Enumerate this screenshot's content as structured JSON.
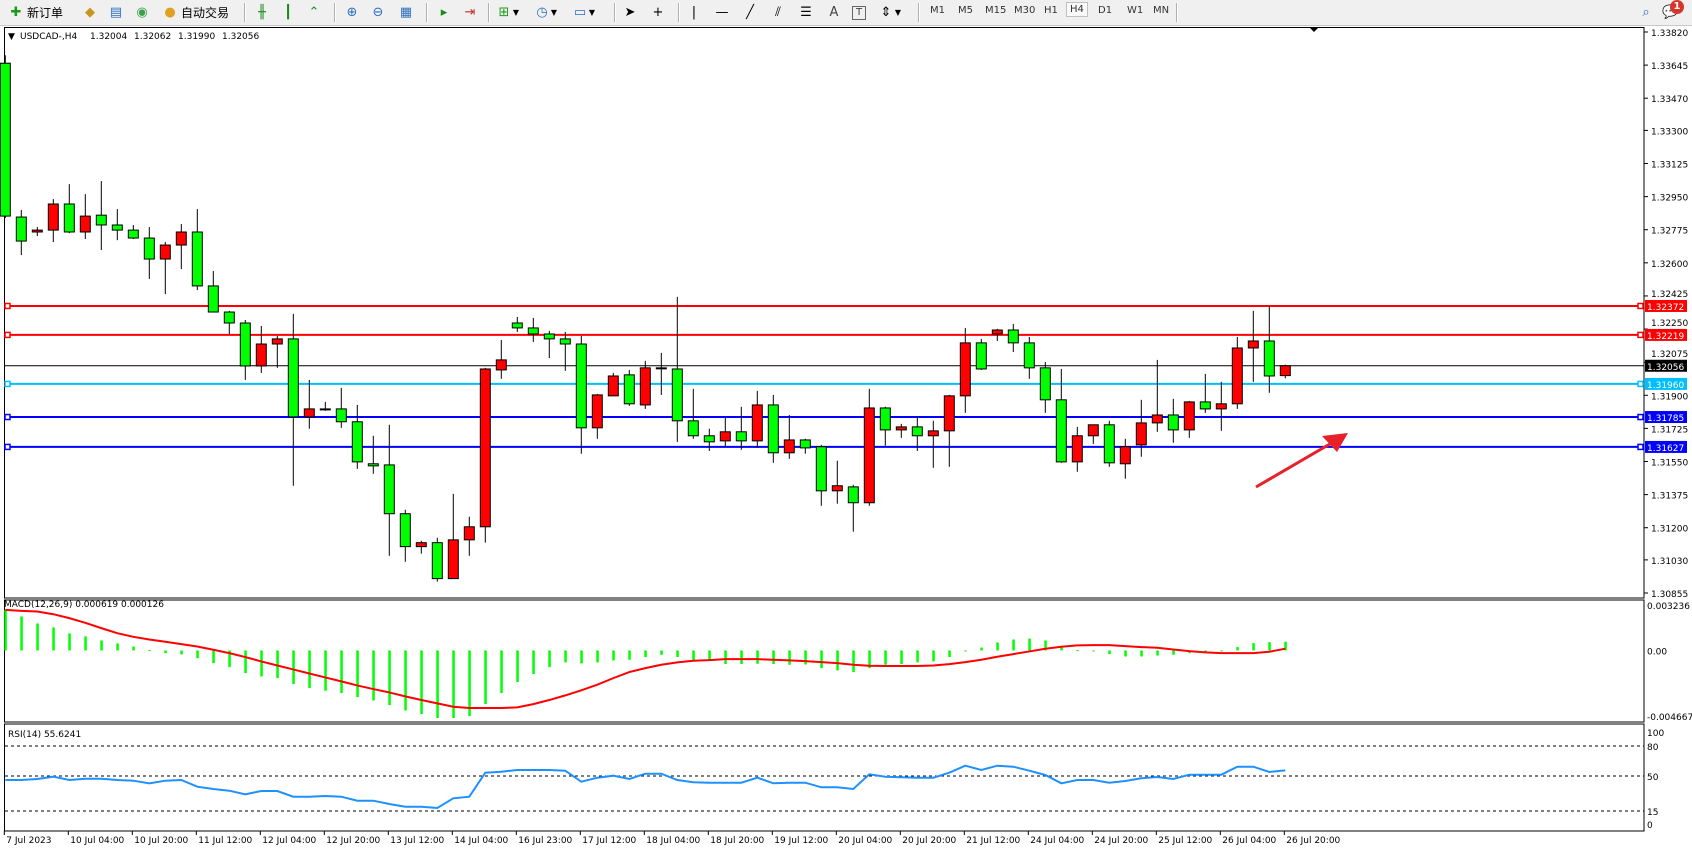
{
  "toolbar": {
    "new_order_label": "新订单",
    "auto_trading_label": "自动交易",
    "timeframes": [
      "M1",
      "M5",
      "M15",
      "M30",
      "H1",
      "H4",
      "D1",
      "W1",
      "MN"
    ],
    "selected_timeframe": "H4",
    "notification_count": "1"
  },
  "chart_info": {
    "symbol": "USDCAD-,H4",
    "open": "1.32004",
    "high": "1.32062",
    "low": "1.31990",
    "close": "1.32056"
  },
  "colors": {
    "bull_candle": "#ff0000",
    "bear_candle": "#00ff00",
    "resistance": "#ff0000",
    "pivot": "#00bfff",
    "support": "#0000ff",
    "macd_hist": "#00ff00",
    "macd_signal": "#ff0000",
    "rsi": "#1e90ff",
    "arrow": "#e8202a"
  },
  "chart_data": [
    {
      "type": "candlestick",
      "title": "USDCAD-,H4",
      "ylim": [
        1.30855,
        1.3382
      ],
      "y_ticks": [
        "1.33820",
        "1.33645",
        "1.33470",
        "1.33300",
        "1.33125",
        "1.32950",
        "1.32775",
        "1.32600",
        "1.32425",
        "1.32250",
        "1.32075",
        "1.31900",
        "1.31725",
        "1.31550",
        "1.31375",
        "1.31200",
        "1.31030",
        "1.30855"
      ],
      "x_tick_labels": [
        "7 Jul 2023",
        "10 Jul 04:00",
        "10 Jul 20:00",
        "11 Jul 12:00",
        "12 Jul 04:00",
        "12 Jul 20:00",
        "13 Jul 12:00",
        "14 Jul 04:00",
        "16 Jul 23:00",
        "17 Jul 12:00",
        "18 Jul 04:00",
        "18 Jul 20:00",
        "19 Jul 12:00",
        "20 Jul 04:00",
        "20 Jul 20:00",
        "21 Jul 12:00",
        "24 Jul 04:00",
        "24 Jul 20:00",
        "25 Jul 12:00",
        "26 Jul 04:00",
        "26 Jul 20:00"
      ],
      "x_tick_every_n_bars": 4,
      "ohlc": [
        [
          1.33655,
          1.33697,
          1.32837,
          1.32847
        ],
        [
          1.32842,
          1.32879,
          1.32641,
          1.32715
        ],
        [
          1.32763,
          1.32789,
          1.32742,
          1.32773
        ],
        [
          1.32773,
          1.32937,
          1.3271,
          1.32911
        ],
        [
          1.32911,
          1.33016,
          1.32757,
          1.32763
        ],
        [
          1.32763,
          1.32963,
          1.32726,
          1.32847
        ],
        [
          1.32852,
          1.33032,
          1.32668,
          1.328
        ],
        [
          1.328,
          1.32884,
          1.3272,
          1.32773
        ],
        [
          1.32773,
          1.328,
          1.32726,
          1.32731
        ],
        [
          1.32731,
          1.32789,
          1.32515,
          1.3262
        ],
        [
          1.3262,
          1.3271,
          1.32435,
          1.32694
        ],
        [
          1.32694,
          1.32805,
          1.32567,
          1.32763
        ],
        [
          1.32763,
          1.32884,
          1.32456,
          1.32478
        ],
        [
          1.32478,
          1.32557,
          1.3234,
          1.3234
        ],
        [
          1.3234,
          1.32346,
          1.32224,
          1.32282
        ],
        [
          1.32282,
          1.32298,
          1.31981,
          1.32055
        ],
        [
          1.32055,
          1.32266,
          1.32018,
          1.32171
        ],
        [
          1.32171,
          1.32214,
          1.32045,
          1.32198
        ],
        [
          1.32198,
          1.3233,
          1.31422,
          1.31786
        ],
        [
          1.31786,
          1.31981,
          1.31723,
          1.31828
        ],
        [
          1.31828,
          1.31865,
          1.31818,
          1.31828
        ],
        [
          1.31828,
          1.31939,
          1.31728,
          1.3176
        ],
        [
          1.3176,
          1.31849,
          1.31511,
          1.31548
        ],
        [
          1.31538,
          1.31686,
          1.31485,
          1.31527
        ],
        [
          1.31532,
          1.31744,
          1.31052,
          1.31274
        ],
        [
          1.31274,
          1.31295,
          1.3102,
          1.311
        ],
        [
          1.311,
          1.31131,
          1.31063,
          1.31121
        ],
        [
          1.31121,
          1.31147,
          1.30915,
          1.30931
        ],
        [
          1.30931,
          1.31379,
          1.30931,
          1.31136
        ],
        [
          1.31136,
          1.31258,
          1.31052,
          1.31205
        ],
        [
          1.31205,
          1.32045,
          1.31121,
          1.32039
        ],
        [
          1.32034,
          1.32192,
          1.31987,
          1.32087
        ],
        [
          1.32282,
          1.32314,
          1.32235,
          1.32256
        ],
        [
          1.32256,
          1.32309,
          1.32182,
          1.32224
        ],
        [
          1.32224,
          1.3224,
          1.32097,
          1.32198
        ],
        [
          1.32198,
          1.32235,
          1.32029,
          1.32171
        ],
        [
          1.32171,
          1.32214,
          1.31591,
          1.31728
        ],
        [
          1.31728,
          1.31907,
          1.3167,
          1.31902
        ],
        [
          1.31897,
          1.32018,
          1.31897,
          1.32002
        ],
        [
          1.32008,
          1.32034,
          1.31844,
          1.31855
        ],
        [
          1.31849,
          1.32082,
          1.31828,
          1.32045
        ],
        [
          1.32045,
          1.32124,
          1.31902,
          1.32045
        ],
        [
          1.32039,
          1.3242,
          1.31654,
          1.31765
        ],
        [
          1.31765,
          1.31934,
          1.3167,
          1.31686
        ],
        [
          1.31686,
          1.31723,
          1.31606,
          1.31654
        ],
        [
          1.31659,
          1.31781,
          1.31628,
          1.31707
        ],
        [
          1.31707,
          1.31839,
          1.31612,
          1.31659
        ],
        [
          1.31659,
          1.31923,
          1.31622,
          1.31849
        ],
        [
          1.31849,
          1.31902,
          1.31543,
          1.31596
        ],
        [
          1.31596,
          1.31796,
          1.31564,
          1.31664
        ],
        [
          1.31664,
          1.3167,
          1.31591,
          1.31622
        ],
        [
          1.31628,
          1.31638,
          1.31316,
          1.31395
        ],
        [
          1.31395,
          1.31554,
          1.31327,
          1.31422
        ],
        [
          1.31416,
          1.31427,
          1.31179,
          1.31332
        ],
        [
          1.31332,
          1.31934,
          1.31316,
          1.31833
        ],
        [
          1.31833,
          1.31839,
          1.31633,
          1.31717
        ],
        [
          1.31717,
          1.31749,
          1.31675,
          1.31733
        ],
        [
          1.31733,
          1.31786,
          1.31606,
          1.31686
        ],
        [
          1.31686,
          1.31765,
          1.31517,
          1.31712
        ],
        [
          1.31712,
          1.31902,
          1.31522,
          1.31897
        ],
        [
          1.31897,
          1.32256,
          1.31807,
          1.32177
        ],
        [
          1.32177,
          1.32198,
          1.32034,
          1.32039
        ],
        [
          1.32224,
          1.32251,
          1.32187,
          1.32245
        ],
        [
          1.32245,
          1.32277,
          1.32129,
          1.32177
        ],
        [
          1.32177,
          1.32208,
          1.31987,
          1.32045
        ],
        [
          1.32045,
          1.32076,
          1.31807,
          1.31876
        ],
        [
          1.31876,
          1.32039,
          1.31543,
          1.31548
        ],
        [
          1.31548,
          1.31733,
          1.31496,
          1.31686
        ],
        [
          1.31686,
          1.31744,
          1.31643,
          1.31744
        ],
        [
          1.31744,
          1.31765,
          1.31522,
          1.31543
        ],
        [
          1.31538,
          1.3167,
          1.31459,
          1.31628
        ],
        [
          1.31638,
          1.31876,
          1.31575,
          1.31754
        ],
        [
          1.31754,
          1.32087,
          1.31707,
          1.31796
        ],
        [
          1.31796,
          1.31881,
          1.31649,
          1.31717
        ],
        [
          1.31717,
          1.3187,
          1.31675,
          1.31865
        ],
        [
          1.31865,
          1.32013,
          1.31807,
          1.31828
        ],
        [
          1.31828,
          1.31971,
          1.31712,
          1.31855
        ],
        [
          1.31855,
          1.32208,
          1.31828,
          1.3215
        ],
        [
          1.3215,
          1.32346,
          1.31971,
          1.32187
        ],
        [
          1.32187,
          1.32372,
          1.31913,
          1.32002
        ],
        [
          1.32004,
          1.32062,
          1.3199,
          1.32056
        ]
      ],
      "horizontal_lines": [
        {
          "price": 1.32372,
          "label": "1.32372",
          "kind": "resistance"
        },
        {
          "price": 1.32219,
          "label": "1.32219",
          "kind": "resistance"
        },
        {
          "price": 1.32056,
          "label": "1.32056",
          "kind": "bid"
        },
        {
          "price": 1.3196,
          "label": "1.31960",
          "kind": "pivot"
        },
        {
          "price": 1.31785,
          "label": "1.31785",
          "kind": "support"
        },
        {
          "price": 1.31627,
          "label": "1.31627",
          "kind": "support"
        }
      ]
    },
    {
      "type": "bar+line",
      "title": "MACD(12,26,9) 0.000619 0.000126",
      "ylim": [
        -0.004667,
        0.003236
      ],
      "y_ticks": [
        "0.003236",
        "0.00",
        "-0.004667"
      ],
      "histogram": [
        0.00289,
        0.00242,
        0.00192,
        0.00164,
        0.00121,
        0.001,
        0.00071,
        0.0005,
        0.00028,
        2e-05,
        -0.00019,
        -0.00028,
        -0.00055,
        -0.0009,
        -0.00119,
        -0.00161,
        -0.00185,
        -0.00197,
        -0.00239,
        -0.00268,
        -0.00287,
        -0.00303,
        -0.00332,
        -0.00356,
        -0.00389,
        -0.00427,
        -0.00453,
        -0.00481,
        -0.00481,
        -0.00467,
        -0.00382,
        -0.00303,
        -0.00225,
        -0.00168,
        -0.00119,
        -0.00085,
        -0.00092,
        -0.00085,
        -0.00071,
        -0.00066,
        -0.00047,
        -0.00031,
        -0.00047,
        -0.00071,
        -0.00073,
        -0.00097,
        -0.00097,
        -0.00095,
        -0.00097,
        -0.00102,
        -0.001,
        -0.00126,
        -0.00142,
        -0.00154,
        -0.00126,
        -0.00102,
        -0.00097,
        -0.00085,
        -0.00078,
        -0.00047,
        -2e-05,
        0.00021,
        0.00057,
        0.00078,
        0.00085,
        0.00071,
        0.00028,
        2e-05,
        -7e-05,
        -0.00026,
        -0.00043,
        -0.00043,
        -0.00036,
        -0.00031,
        -0.00019,
        -0.00012,
        -7e-05,
        0.00024,
        0.00052,
        0.00059,
        0.000619
      ],
      "signal": [
        0.00289,
        0.00282,
        0.00277,
        0.00258,
        0.0023,
        0.00197,
        0.00159,
        0.00123,
        0.00097,
        0.00078,
        0.00062,
        0.00045,
        0.00028,
        5e-05,
        -0.00019,
        -0.00047,
        -0.00078,
        -0.00107,
        -0.00135,
        -0.00164,
        -0.00192,
        -0.0022,
        -0.00249,
        -0.00275,
        -0.00299,
        -0.00327,
        -0.00353,
        -0.00377,
        -0.00401,
        -0.0041,
        -0.0041,
        -0.0041,
        -0.00405,
        -0.00382,
        -0.00353,
        -0.0032,
        -0.00284,
        -0.00244,
        -0.00197,
        -0.00154,
        -0.00126,
        -0.00102,
        -0.00085,
        -0.00073,
        -0.00069,
        -0.00062,
        -0.00062,
        -0.00062,
        -0.00066,
        -0.00071,
        -0.00076,
        -0.00083,
        -0.0009,
        -0.00102,
        -0.00109,
        -0.00111,
        -0.00111,
        -0.00111,
        -0.00107,
        -0.00097,
        -0.00083,
        -0.00066,
        -0.00045,
        -0.00026,
        -7e-05,
        0.00012,
        0.00026,
        0.00036,
        0.00038,
        0.00038,
        0.00031,
        0.00024,
        0.00019,
        7e-05,
        -5e-05,
        -0.00014,
        -0.00019,
        -0.00019,
        -0.00019,
        -9e-05,
        0.000126
      ]
    },
    {
      "type": "line",
      "title": "RSI(14) 55.6241",
      "ylim": [
        0,
        100
      ],
      "y_ticks": [
        "100",
        "80",
        "50",
        "15",
        "0"
      ],
      "levels": [
        80,
        50,
        15
      ],
      "values": [
        46,
        46,
        47,
        49.3,
        46,
        47.3,
        47.3,
        46,
        45.3,
        42.7,
        45.3,
        46,
        39.3,
        37,
        35.3,
        31.7,
        35,
        35,
        29.3,
        29.3,
        30,
        29.3,
        25.3,
        25.3,
        22,
        19.3,
        19.3,
        18,
        27.7,
        29.3,
        53.3,
        54.3,
        56,
        56,
        56,
        55.3,
        44.3,
        48.3,
        50.3,
        47,
        52.3,
        52.3,
        46,
        43.7,
        43.3,
        43.3,
        43.3,
        48.3,
        42.7,
        43.3,
        43.3,
        38.7,
        38.7,
        37,
        51.7,
        49.3,
        48.7,
        48.3,
        48.3,
        53.3,
        60.3,
        56,
        60.3,
        59.3,
        55.3,
        51,
        42.7,
        46,
        46,
        43.3,
        45,
        47.7,
        49,
        47,
        51.3,
        51.3,
        51.3,
        59.3,
        59.3,
        54,
        55.6241
      ]
    }
  ]
}
